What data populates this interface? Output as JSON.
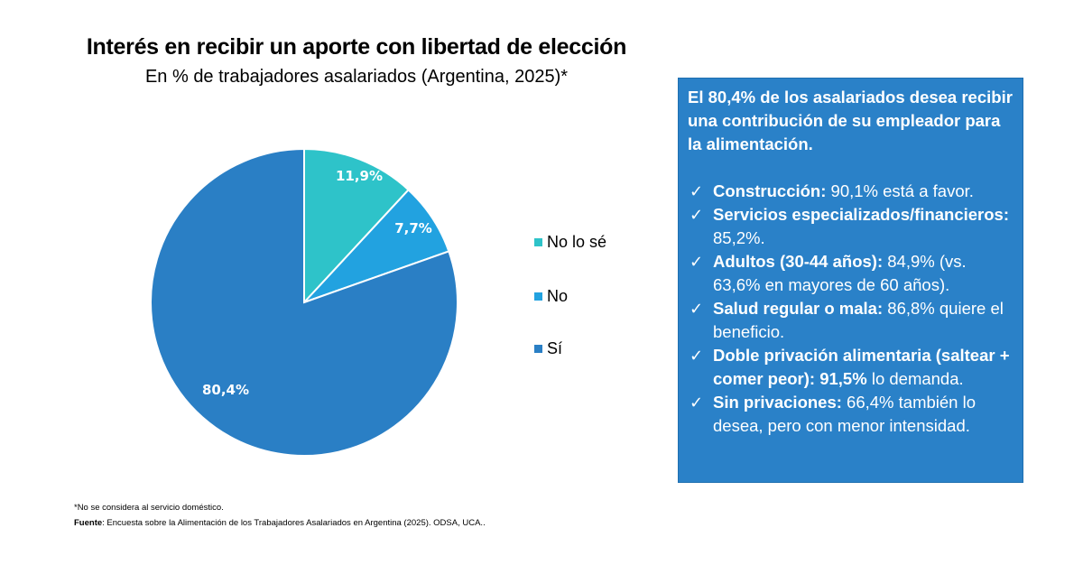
{
  "chart_data": {
    "type": "pie",
    "title": "Interés en recibir un aporte con libertad de elección",
    "subtitle": "En % de trabajadores asalariados (Argentina, 2025)*",
    "slices": [
      {
        "label": "No lo sé",
        "value": 11.9,
        "value_label": "11,9%",
        "color": "#2ec3c9"
      },
      {
        "label": "No",
        "value": 7.7,
        "value_label": "7,7%",
        "color": "#22a2e0"
      },
      {
        "label": "Sí",
        "value": 80.4,
        "value_label": "80,4%",
        "color": "#2a7fc5"
      }
    ],
    "start_angle": "12 o'clock",
    "direction": "clockwise",
    "legend_position": "right"
  },
  "legend": [
    {
      "label": "No lo sé",
      "color": "#2ec3c9"
    },
    {
      "label": "No",
      "color": "#22a2e0"
    },
    {
      "label": "Sí",
      "color": "#2a7fc5"
    }
  ],
  "infobox": {
    "heading": "El 80,4% de los asalariados desea recibir una contribución de su empleador para la alimentación.",
    "bullets": [
      {
        "bold": "Construcción:",
        "text": " 90,1% está a favor."
      },
      {
        "bold": "Servicios especializados/financieros:",
        "text": " 85,2%."
      },
      {
        "bold": "Adultos (30-44 años):",
        "text": " 84,9% (vs. 63,6% en mayores de 60 años)."
      },
      {
        "bold": "Salud regular o mala:",
        "text": " 86,8% quiere el beneficio."
      },
      {
        "bold": "Doble privación alimentaria (saltear + comer peor): 91,5%",
        "text": " lo demanda."
      },
      {
        "bold": "Sin privaciones:",
        "text": " 66,4% también lo desea, pero con menor intensidad."
      }
    ],
    "check_glyph": "✓",
    "background": "#2a81c8"
  },
  "footnote": "*No se considera al servicio doméstico.",
  "source": {
    "label": "Fuente",
    "text": ": Encuesta sobre la Alimentación de los Trabajadores Asalariados en Argentina (2025). ODSA, UCA.."
  }
}
